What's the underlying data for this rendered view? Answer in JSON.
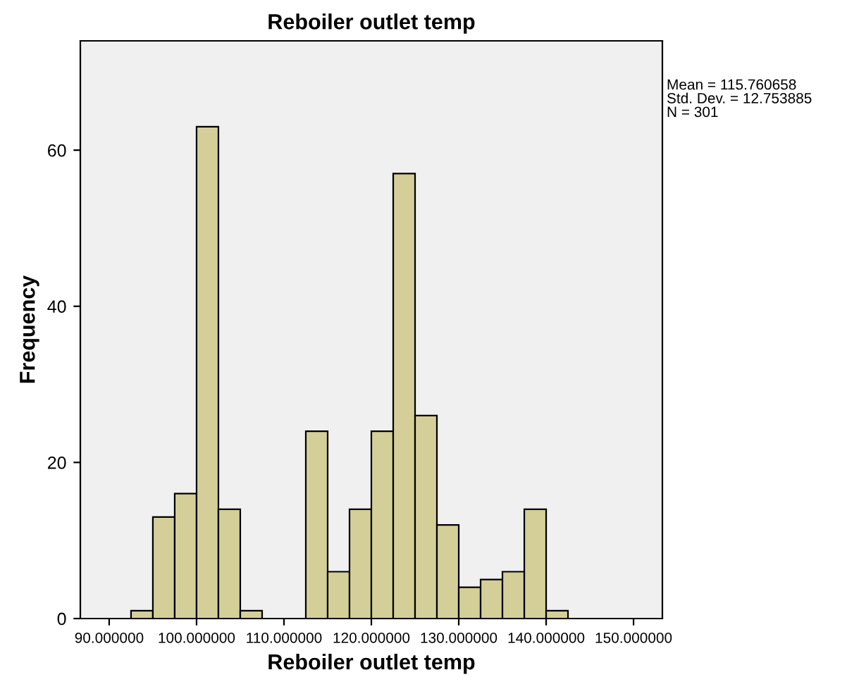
{
  "chart_data": {
    "type": "histogram",
    "title": "Reboiler outlet temp",
    "xlabel": "Reboiler outlet temp",
    "ylabel": "Frequency",
    "bins": [
      92.5,
      95,
      97.5,
      100,
      102.5,
      105,
      107.5,
      110,
      112.5,
      115,
      117.5,
      120,
      122.5,
      125,
      127.5,
      130,
      132.5,
      135,
      137.5,
      140,
      142.5
    ],
    "values": [
      1,
      13,
      16,
      63,
      14,
      1,
      0,
      0,
      24,
      6,
      14,
      24,
      57,
      26,
      12,
      4,
      5,
      6,
      14,
      1
    ],
    "color": "#d4cf98",
    "xlim": [
      86.7,
      153.3
    ],
    "xticks": [
      {
        "value": 90,
        "label": "90.000000"
      },
      {
        "value": 100,
        "label": "100.000000"
      },
      {
        "value": 110,
        "label": "110.000000"
      },
      {
        "value": 120,
        "label": "120.000000"
      },
      {
        "value": 130,
        "label": "130.000000"
      },
      {
        "value": 140,
        "label": "140.000000"
      },
      {
        "value": 150,
        "label": "150.000000"
      }
    ],
    "ylim": [
      0,
      74
    ],
    "yticks": [
      0,
      20,
      40,
      60
    ],
    "grid": false,
    "annotations": [
      "Mean = 115.760658\nStd. Dev. = 12.753885\nN = 301"
    ]
  }
}
